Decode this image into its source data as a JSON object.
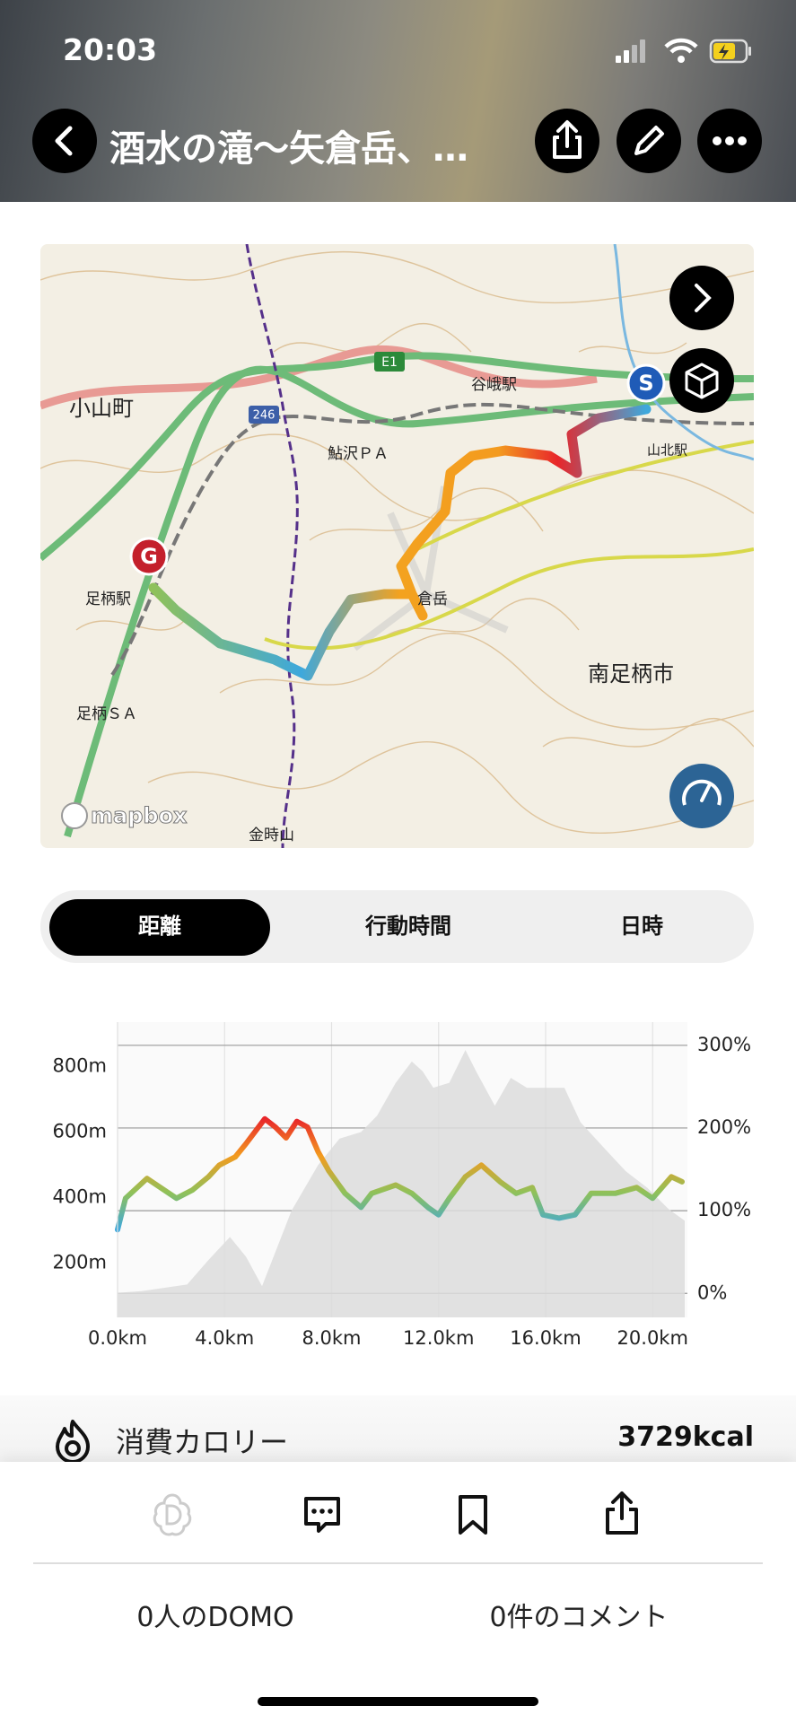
{
  "status_bar": {
    "time": "20:03"
  },
  "header": {
    "title": "酒水の滝〜矢倉岳、…"
  },
  "map": {
    "labels": [
      "小山町",
      "南足柄市",
      "足柄駅",
      "鮎沢ＰＡ",
      "谷峨駅",
      "倉岳",
      "金時山",
      "足柄ＳＡ",
      "山北駅",
      "E1",
      "246"
    ],
    "attribution": "mapbox",
    "start_marker": "S",
    "goal_marker": "G"
  },
  "tabs": [
    "距離",
    "行動時間",
    "日時"
  ],
  "chart_data": {
    "type": "area-line",
    "xlim": [
      0,
      21.3
    ],
    "xticks": [
      {
        "value": 0,
        "label": "0.0km"
      },
      {
        "value": 4,
        "label": "4.0km"
      },
      {
        "value": 8,
        "label": "8.0km"
      },
      {
        "value": 12,
        "label": "12.0km"
      },
      {
        "value": 16,
        "label": "16.0km"
      },
      {
        "value": 20,
        "label": "20.0km"
      }
    ],
    "ylim": [
      35,
      935
    ],
    "yticks": [
      {
        "value": 200,
        "label": "200m"
      },
      {
        "value": 400,
        "label": "400m"
      },
      {
        "value": 600,
        "label": "600m"
      },
      {
        "value": 800,
        "label": "800m"
      }
    ],
    "y2lim": [
      -29,
      328
    ],
    "y2ticks": [
      {
        "value": 0,
        "label": "0%"
      },
      {
        "value": 100,
        "label": "100%"
      },
      {
        "value": 200,
        "label": "200%"
      },
      {
        "value": 300,
        "label": "300%"
      }
    ],
    "grid": true,
    "series": [
      {
        "type": "area",
        "color": "#dcdcdc",
        "x": [
          0,
          0.9,
          2.6,
          3.4,
          4.2,
          4.8,
          5.4,
          6.5,
          7.5,
          8.3,
          9.1,
          9.7,
          10.4,
          11.0,
          11.4,
          11.8,
          12.4,
          13.0,
          13.4,
          14.1,
          14.7,
          15.3,
          16.1,
          16.7,
          17.3,
          18.2,
          19.0,
          19.8,
          20.6,
          21.2
        ],
        "values": [
          110,
          115,
          135,
          210,
          280,
          220,
          130,
          360,
          500,
          580,
          600,
          650,
          750,
          815,
          785,
          735,
          750,
          850,
          785,
          680,
          765,
          735,
          735,
          735,
          630,
          550,
          480,
          430,
          365,
          330
        ]
      },
      {
        "type": "line",
        "axis": "y2",
        "color_scale": [
          "#e8262a",
          "#f39b1f",
          "#8fc15a",
          "#3ea8dc"
        ],
        "x": [
          0,
          0.3,
          1.1,
          2.2,
          2.8,
          3.4,
          3.8,
          4.4,
          4.8,
          5.5,
          5.9,
          6.3,
          6.7,
          7.1,
          7.5,
          7.9,
          8.5,
          9.1,
          9.5,
          10.4,
          11.0,
          11.6,
          12.0,
          12.4,
          13.0,
          13.6,
          14.3,
          14.9,
          15.5,
          15.9,
          16.5,
          17.1,
          17.7,
          18.6,
          19.4,
          20.0,
          20.7,
          21.1
        ],
        "values": [
          77,
          115,
          139,
          115,
          125,
          141,
          155,
          165,
          181,
          211,
          201,
          188,
          208,
          201,
          171,
          148,
          121,
          104,
          121,
          131,
          121,
          104,
          95,
          115,
          141,
          155,
          135,
          121,
          128,
          95,
          91,
          95,
          121,
          121,
          128,
          115,
          141,
          135
        ]
      }
    ]
  },
  "stats": {
    "calories_label": "消費カロリー",
    "calories_value": "3729kcal"
  },
  "footer": {
    "domo": "0人のDOMO",
    "comments": "0件のコメント"
  }
}
